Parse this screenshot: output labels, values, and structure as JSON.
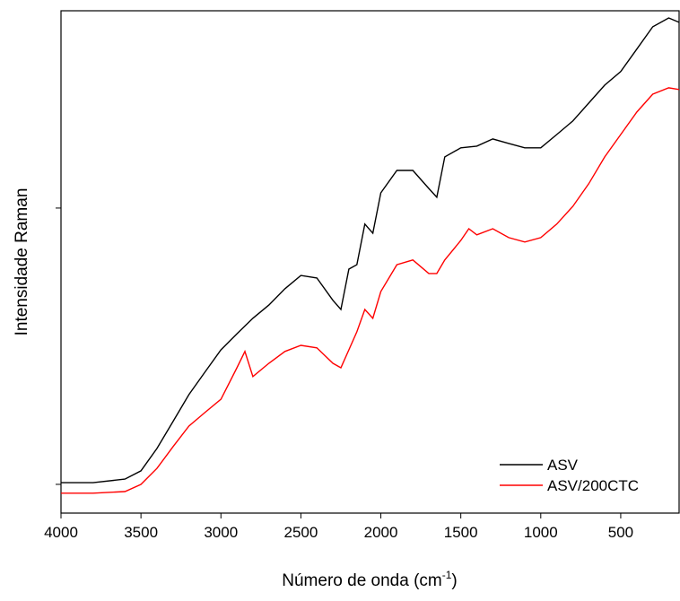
{
  "chart_data": {
    "type": "line",
    "xlabel": "Número de onda (cm",
    "xlabel_sup": "-1",
    "xlabel_end": ")",
    "ylabel": "Intensidade Raman",
    "xlim": [
      4000,
      135
    ],
    "xticks": [
      4000,
      3500,
      3000,
      2500,
      2000,
      1500,
      1000,
      500
    ],
    "ylim": [
      -0.104,
      1.714
    ],
    "yticks": [
      0,
      1
    ],
    "legend": "lower right",
    "series": [
      {
        "name": "ASV",
        "color": "#000000",
        "x": [
          4000,
          3800,
          3600,
          3500,
          3400,
          3300,
          3200,
          3100,
          3000,
          2900,
          2800,
          2700,
          2600,
          2500,
          2400,
          2300,
          2250,
          2200,
          2150,
          2100,
          2050,
          2000,
          1900,
          1800,
          1700,
          1650,
          1600,
          1500,
          1400,
          1300,
          1200,
          1100,
          1000,
          900,
          800,
          700,
          600,
          500,
          400,
          300,
          200,
          135
        ],
        "values": [
          0.006,
          0.006,
          0.019,
          0.049,
          0.13,
          0.227,
          0.325,
          0.406,
          0.487,
          0.545,
          0.601,
          0.649,
          0.708,
          0.756,
          0.747,
          0.666,
          0.633,
          0.779,
          0.795,
          0.942,
          0.909,
          1.055,
          1.136,
          1.136,
          1.071,
          1.039,
          1.185,
          1.218,
          1.224,
          1.25,
          1.234,
          1.218,
          1.218,
          1.266,
          1.315,
          1.38,
          1.445,
          1.494,
          1.575,
          1.656,
          1.688,
          1.672
        ]
      },
      {
        "name": "ASV/200CTC",
        "color": "#ff0000",
        "x": [
          4000,
          3800,
          3600,
          3500,
          3400,
          3300,
          3200,
          3100,
          3000,
          2900,
          2850,
          2800,
          2700,
          2600,
          2500,
          2400,
          2300,
          2250,
          2200,
          2150,
          2100,
          2050,
          2000,
          1900,
          1800,
          1700,
          1650,
          1600,
          1500,
          1450,
          1400,
          1300,
          1200,
          1100,
          1000,
          900,
          800,
          700,
          600,
          500,
          400,
          300,
          200,
          135
        ],
        "values": [
          -0.032,
          -0.032,
          -0.026,
          0,
          0.058,
          0.136,
          0.211,
          0.26,
          0.308,
          0.422,
          0.481,
          0.39,
          0.438,
          0.481,
          0.503,
          0.494,
          0.438,
          0.422,
          0.487,
          0.552,
          0.633,
          0.601,
          0.698,
          0.795,
          0.812,
          0.763,
          0.763,
          0.812,
          0.883,
          0.925,
          0.903,
          0.925,
          0.893,
          0.877,
          0.893,
          0.942,
          1.006,
          1.088,
          1.185,
          1.266,
          1.347,
          1.412,
          1.435,
          1.429
        ]
      }
    ]
  }
}
